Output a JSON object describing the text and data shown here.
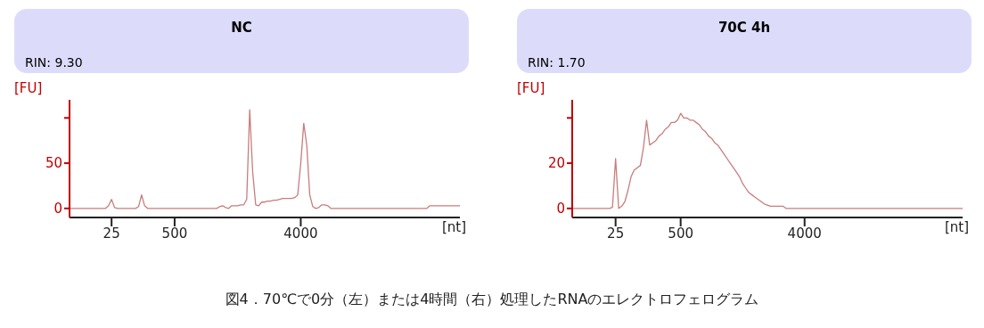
{
  "chart_data": [
    {
      "type": "line",
      "title": "NC",
      "subtitle": "RIN: 9.30",
      "xlabel": "[nt]",
      "ylabel": "[FU]",
      "categories": [
        null,
        null,
        null,
        null,
        null,
        null,
        null,
        null,
        null,
        null,
        null,
        null,
        null,
        null,
        "25",
        null,
        null,
        null,
        null,
        null,
        null,
        null,
        null,
        null,
        null,
        null,
        null,
        null,
        null,
        null,
        null,
        null,
        null,
        null,
        null,
        "500",
        null,
        null,
        null,
        null,
        null,
        null,
        null,
        null,
        null,
        null,
        null,
        null,
        null,
        null,
        null,
        null,
        null,
        null,
        null,
        null,
        null,
        null,
        null,
        null,
        null,
        null,
        null,
        null,
        null,
        null,
        null,
        null,
        null,
        null,
        null,
        null,
        null,
        null,
        null,
        null,
        null,
        "4000",
        null,
        null,
        null,
        null,
        null,
        null,
        null,
        null,
        null,
        null,
        null,
        null,
        null,
        null,
        null,
        null,
        null,
        null,
        null,
        null,
        null,
        null,
        null,
        null,
        null,
        null,
        null,
        null,
        null,
        null,
        null,
        null,
        null,
        null,
        null,
        null,
        null,
        null,
        null,
        null,
        null,
        null,
        null,
        null,
        null,
        null,
        null,
        null,
        null,
        null,
        null,
        null,
        null
      ],
      "series": [
        {
          "color": "#c87d7d",
          "values": [
            0,
            0,
            0,
            0,
            0,
            0,
            0,
            0,
            0,
            0,
            0,
            0,
            0,
            3,
            10,
            1,
            0,
            0,
            0,
            0,
            0,
            0,
            0,
            2,
            15,
            3,
            0,
            0,
            0,
            0,
            0,
            0,
            0,
            0,
            0,
            0,
            0,
            0,
            0,
            0,
            0,
            0,
            0,
            0,
            0,
            0,
            0,
            0,
            0,
            0,
            2,
            3,
            1,
            0,
            3,
            3,
            3,
            4,
            4,
            10,
            109,
            40,
            4,
            3,
            7,
            7,
            8,
            8,
            9,
            9,
            10,
            11,
            11,
            11,
            11,
            12,
            15,
            50,
            94,
            70,
            15,
            2,
            0,
            1,
            4,
            4,
            3,
            0,
            0,
            0,
            0,
            0,
            0,
            0,
            0,
            0,
            0,
            0,
            0,
            0,
            0,
            0,
            0,
            0,
            0,
            0,
            0,
            0,
            0,
            0,
            0,
            0,
            0,
            0,
            0,
            0,
            0,
            0,
            0,
            0,
            3,
            3,
            3,
            3,
            3,
            3,
            3,
            3,
            3,
            3,
            3
          ]
        }
      ],
      "ylim": [
        -10,
        120
      ],
      "yticks": [
        0,
        50,
        {
          "value": 100,
          "label": null
        }
      ],
      "grid": false,
      "legend": false,
      "line_style": "solid",
      "marker": "none",
      "annotations": [
        "図4．70℃で0分（左）または4時間（右）処理したRNAのエレクトロフェログラム"
      ]
    },
    {
      "type": "line",
      "title": "70C 4h",
      "subtitle": "RIN: 1.70",
      "xlabel": "[nt]",
      "ylabel": "[FU]",
      "categories": [
        null,
        null,
        null,
        null,
        null,
        null,
        null,
        null,
        null,
        null,
        null,
        null,
        null,
        null,
        "25",
        null,
        null,
        null,
        null,
        null,
        null,
        null,
        null,
        null,
        null,
        null,
        null,
        null,
        null,
        null,
        null,
        null,
        null,
        null,
        null,
        "500",
        null,
        null,
        null,
        null,
        null,
        null,
        null,
        null,
        null,
        null,
        null,
        null,
        null,
        null,
        null,
        null,
        null,
        null,
        null,
        null,
        null,
        null,
        null,
        null,
        null,
        null,
        null,
        null,
        null,
        null,
        null,
        null,
        null,
        null,
        null,
        null,
        null,
        null,
        null,
        "4000",
        null,
        null,
        null,
        null,
        null,
        null,
        null,
        null,
        null,
        null,
        null,
        null,
        null,
        null,
        null,
        null,
        null,
        null,
        null,
        null,
        null,
        null,
        null,
        null,
        null,
        null,
        null,
        null,
        null,
        null,
        null,
        null,
        null,
        null,
        null,
        null,
        null,
        null,
        null,
        null,
        null,
        null,
        null,
        null,
        null,
        null,
        null,
        null,
        null,
        null,
        null
      ],
      "series": [
        {
          "color": "#c87d7d",
          "values": [
            0,
            0,
            0,
            0,
            0,
            0,
            0,
            0,
            0,
            0,
            0,
            0,
            0,
            0.5,
            22,
            0,
            1,
            3,
            8,
            14,
            17,
            18,
            19,
            27,
            39,
            28,
            29,
            30,
            32,
            33,
            35,
            36,
            38,
            38,
            39,
            42,
            40,
            40,
            39,
            39,
            38,
            37,
            35,
            34,
            32,
            31,
            29,
            28,
            26,
            24,
            22,
            20,
            18,
            16,
            14,
            11,
            9,
            7,
            6,
            5,
            4,
            3,
            2,
            1.5,
            1,
            1,
            1,
            1,
            1,
            0,
            0,
            0,
            0,
            0,
            0,
            0,
            0,
            0,
            0,
            0,
            0,
            0,
            0,
            0,
            0,
            0,
            0,
            0,
            0,
            0,
            0,
            0,
            0,
            0,
            0,
            0,
            0,
            0,
            0,
            0,
            0,
            0,
            0,
            0,
            0,
            0,
            0,
            0,
            0,
            0,
            0,
            0,
            0,
            0,
            0,
            0,
            0,
            0,
            0,
            0,
            0,
            0,
            0,
            0,
            0,
            0,
            0
          ]
        }
      ],
      "ylim": [
        -4,
        48
      ],
      "yticks": [
        0,
        20,
        {
          "value": 40,
          "label": null
        }
      ],
      "grid": false,
      "legend": false,
      "line_style": "solid",
      "marker": "none"
    }
  ]
}
